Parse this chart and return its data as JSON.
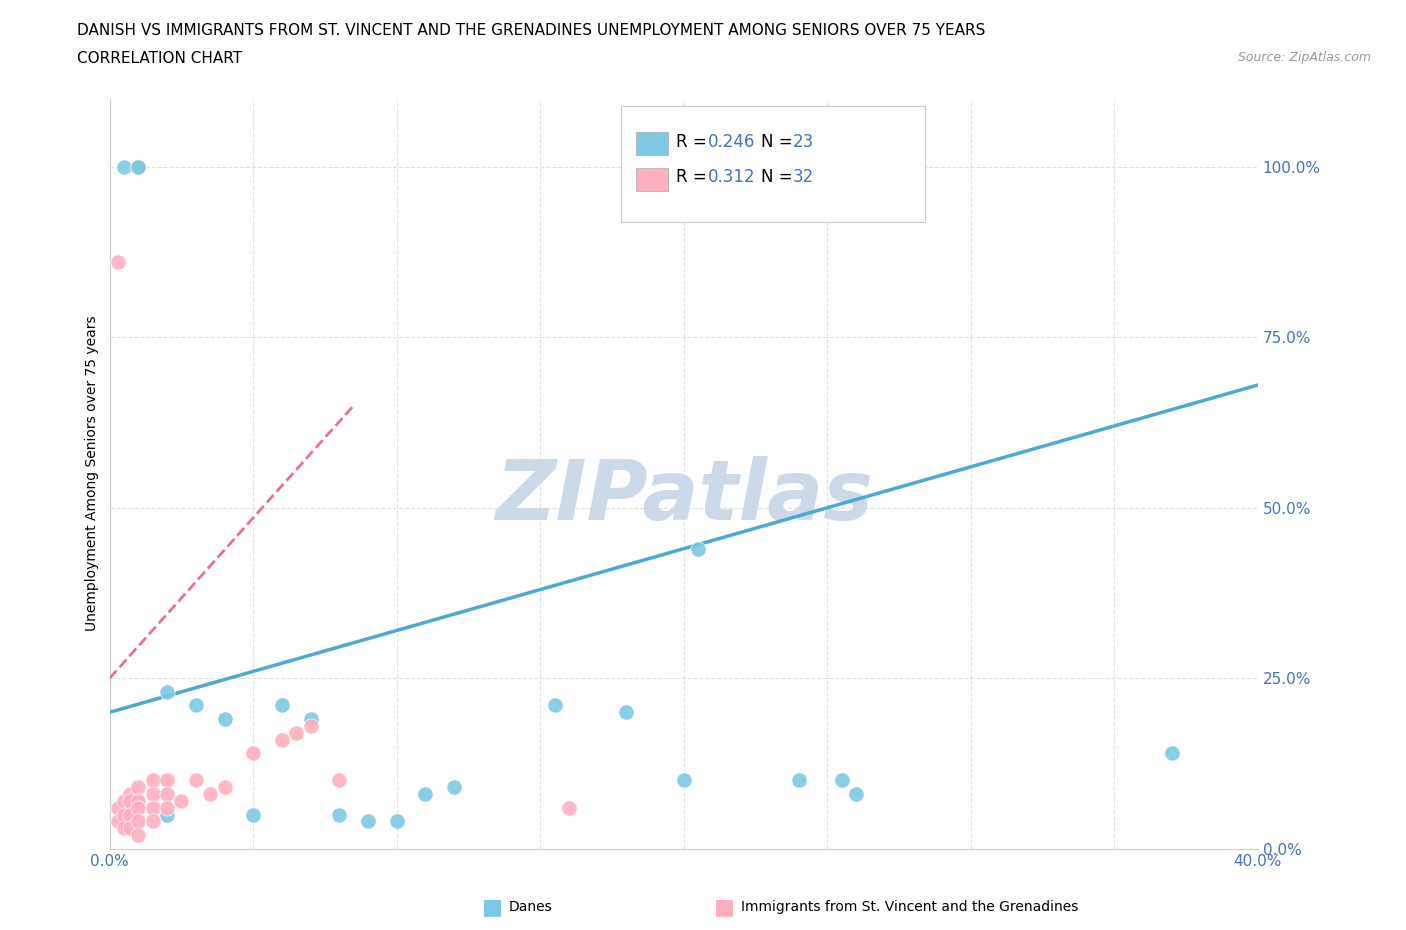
{
  "title_line1": "DANISH VS IMMIGRANTS FROM ST. VINCENT AND THE GRENADINES UNEMPLOYMENT AMONG SENIORS OVER 75 YEARS",
  "title_line2": "CORRELATION CHART",
  "source": "Source: ZipAtlas.com",
  "ylabel": "Unemployment Among Seniors over 75 years",
  "watermark": "ZIPatlas",
  "legend_entries": [
    {
      "label": "Danes",
      "R": 0.246,
      "N": 23,
      "color": "#7ec8e3"
    },
    {
      "label": "Immigrants from St. Vincent and the Grenadines",
      "R": 0.312,
      "N": 32,
      "color": "#ffb6c1"
    }
  ],
  "blue_scatter_x": [
    0.005,
    0.01,
    0.01,
    0.02,
    0.02,
    0.03,
    0.04,
    0.05,
    0.06,
    0.07,
    0.08,
    0.09,
    0.1,
    0.11,
    0.12,
    0.155,
    0.18,
    0.2,
    0.205,
    0.24,
    0.255,
    0.26,
    0.37
  ],
  "blue_scatter_y": [
    1.0,
    1.0,
    1.0,
    0.23,
    0.05,
    0.21,
    0.19,
    0.05,
    0.21,
    0.19,
    0.05,
    0.04,
    0.04,
    0.08,
    0.09,
    0.21,
    0.2,
    0.1,
    0.44,
    0.1,
    0.1,
    0.08,
    0.14
  ],
  "pink_scatter_x": [
    0.003,
    0.003,
    0.003,
    0.005,
    0.005,
    0.005,
    0.007,
    0.007,
    0.007,
    0.007,
    0.01,
    0.01,
    0.01,
    0.01,
    0.01,
    0.015,
    0.015,
    0.015,
    0.015,
    0.02,
    0.02,
    0.02,
    0.025,
    0.03,
    0.035,
    0.04,
    0.05,
    0.06,
    0.065,
    0.07,
    0.08,
    0.16
  ],
  "pink_scatter_y": [
    0.86,
    0.06,
    0.04,
    0.07,
    0.05,
    0.03,
    0.08,
    0.07,
    0.05,
    0.03,
    0.09,
    0.07,
    0.06,
    0.04,
    0.02,
    0.1,
    0.08,
    0.06,
    0.04,
    0.1,
    0.08,
    0.06,
    0.07,
    0.1,
    0.08,
    0.09,
    0.14,
    0.16,
    0.17,
    0.18,
    0.1,
    0.06
  ],
  "blue_line_x": [
    0.0,
    0.4
  ],
  "blue_line_y": [
    0.2,
    0.68
  ],
  "pink_line_x": [
    0.0,
    0.085
  ],
  "pink_line_y": [
    0.25,
    0.65
  ],
  "xlim": [
    0.0,
    0.4
  ],
  "ylim": [
    0.0,
    1.1
  ],
  "x_ticks": [
    0.0,
    0.05,
    0.1,
    0.15,
    0.2,
    0.25,
    0.3,
    0.35,
    0.4
  ],
  "x_tick_labels": [
    "0.0%",
    "",
    "",
    "",
    "",
    "",
    "",
    "",
    "40.0%"
  ],
  "y_ticks": [
    0.0,
    0.25,
    0.5,
    0.75,
    1.0
  ],
  "y_tick_labels_right": [
    "0.0%",
    "25.0%",
    "50.0%",
    "75.0%",
    "100.0%"
  ],
  "blue_color": "#7ec8e3",
  "pink_color": "#ffb0c0",
  "blue_line_color": "#4fa8d0",
  "pink_line_color": "#e87090",
  "pink_line_style": "--",
  "title_fontsize": 11,
  "subtitle_fontsize": 11,
  "axis_label_fontsize": 10,
  "tick_fontsize": 11,
  "background_color": "#ffffff",
  "grid_color": "#e0e0e0",
  "grid_style": "--",
  "watermark_color": "#ccd9e8",
  "watermark_fontsize": 60,
  "R_color": "#4472c4",
  "ytick_color": "#4472c4"
}
